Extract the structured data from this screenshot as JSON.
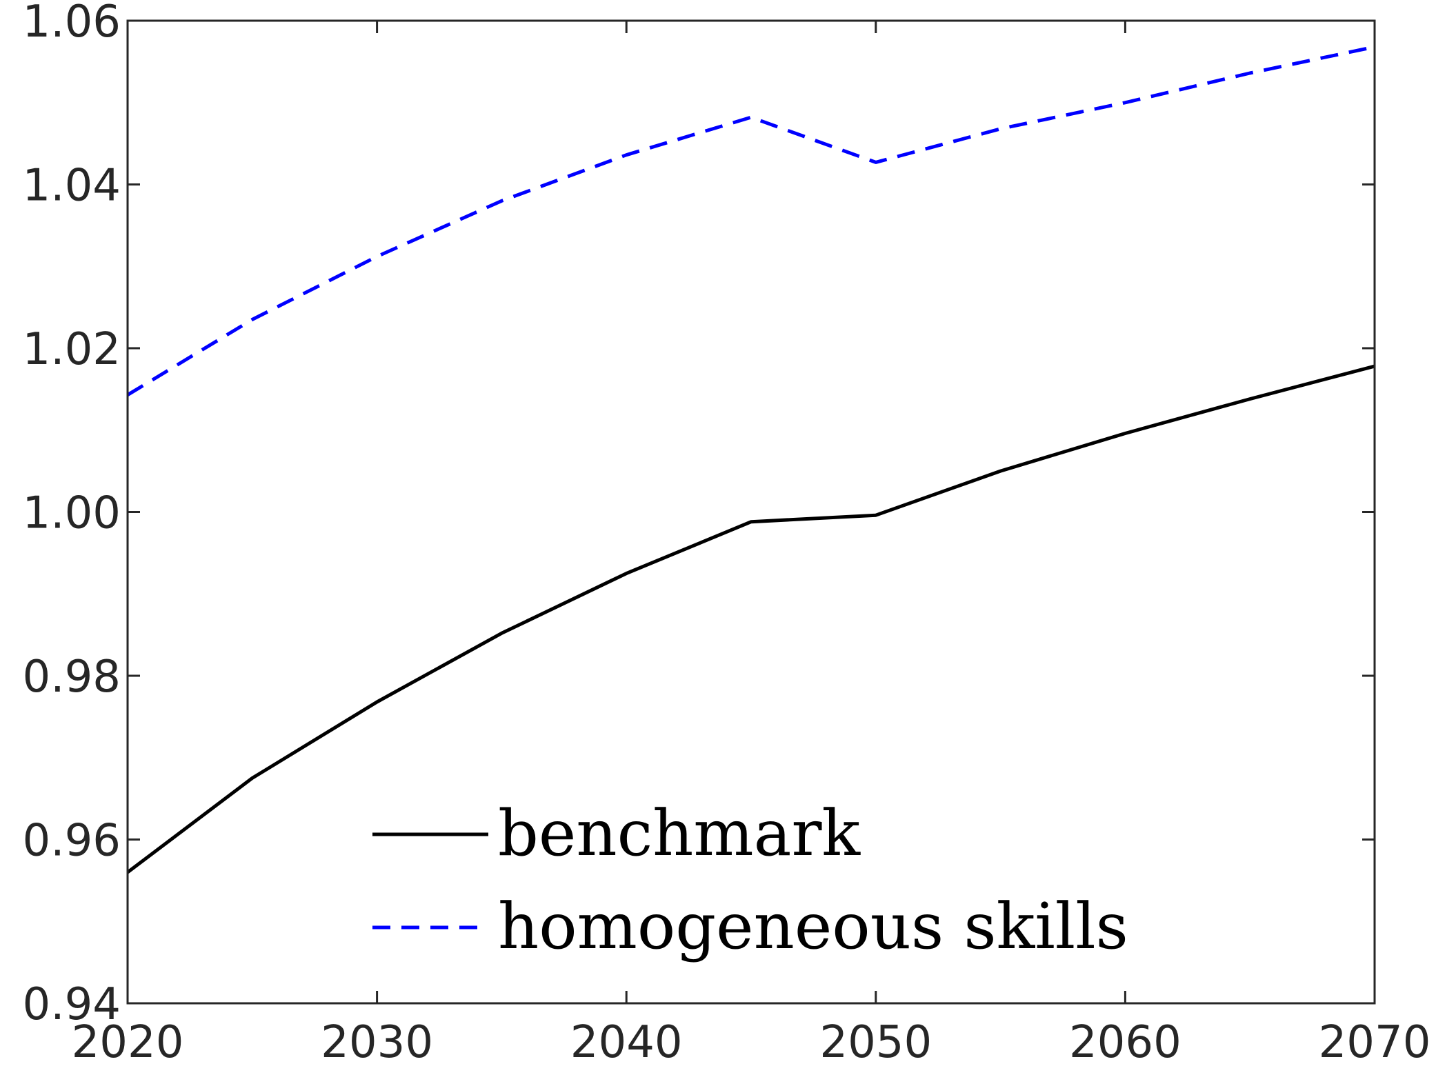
{
  "chart_data": {
    "type": "line",
    "title": "",
    "xlabel": "",
    "ylabel": "",
    "xlim": [
      2020,
      2070
    ],
    "ylim": [
      0.94,
      1.06
    ],
    "x_ticks": [
      "2020",
      "2030",
      "2040",
      "2050",
      "2060",
      "2070"
    ],
    "y_ticks": [
      "0.94",
      "0.96",
      "0.98",
      "1.00",
      "1.02",
      "1.04",
      "1.06"
    ],
    "x": [
      2020,
      2025,
      2030,
      2035,
      2040,
      2045,
      2050,
      2055,
      2060,
      2065,
      2070
    ],
    "series": [
      {
        "name": "benchmark",
        "color": "#000000",
        "dash": "solid",
        "values": [
          0.956,
          0.9675,
          0.9768,
          0.9852,
          0.9925,
          0.9988,
          0.9996,
          1.005,
          1.0096,
          1.0138,
          1.0178
        ]
      },
      {
        "name": "homogeneous skills",
        "color": "#0000ff",
        "dash": "dashed",
        "values": [
          1.0143,
          1.0235,
          1.0312,
          1.038,
          1.0436,
          1.0482,
          1.0427,
          1.0468,
          1.05,
          1.0536,
          1.0568
        ]
      }
    ],
    "grid": false,
    "legend_position": "bottom-center"
  }
}
